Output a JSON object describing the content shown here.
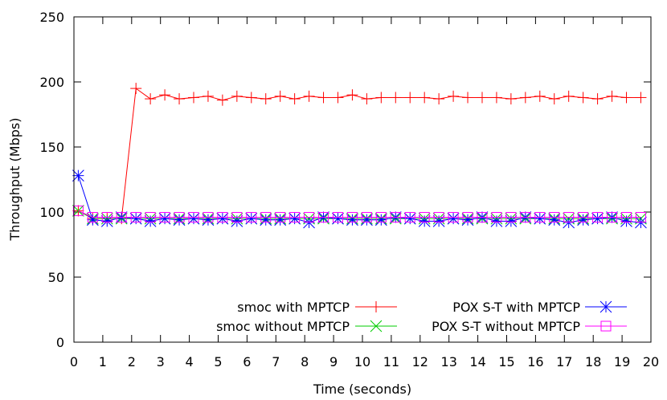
{
  "chart_data": {
    "type": "line",
    "title": "",
    "xlabel": "Time (seconds)",
    "ylabel": "Throughput (Mbps)",
    "xlim": [
      0,
      20
    ],
    "ylim": [
      0,
      250
    ],
    "xticks": [
      0,
      1,
      2,
      3,
      4,
      5,
      6,
      7,
      8,
      9,
      10,
      11,
      12,
      13,
      14,
      15,
      16,
      17,
      18,
      19,
      20
    ],
    "yticks": [
      0,
      50,
      100,
      150,
      200,
      250
    ],
    "grid": false,
    "legend_position": "bottom-right",
    "x": [
      0.15,
      0.65,
      1.15,
      1.65,
      2.15,
      2.65,
      3.15,
      3.65,
      4.15,
      4.65,
      5.15,
      5.65,
      6.15,
      6.65,
      7.15,
      7.65,
      8.15,
      8.65,
      9.15,
      9.65,
      10.15,
      10.65,
      11.15,
      11.65,
      12.15,
      12.65,
      13.15,
      13.65,
      14.15,
      14.65,
      15.15,
      15.65,
      16.15,
      16.65,
      17.15,
      17.65,
      18.15,
      18.65,
      19.15,
      19.65
    ],
    "series": [
      {
        "name": "smoc with MPTCP",
        "color": "#ff0000",
        "marker": "plus",
        "values": [
          101,
          95,
          95,
          95,
          195,
          187,
          190,
          187,
          188,
          189,
          186,
          189,
          188,
          187,
          189,
          187,
          189,
          188,
          188,
          190,
          187,
          188,
          188,
          188,
          188,
          187,
          189,
          188,
          188,
          188,
          187,
          188,
          189,
          187,
          189,
          188,
          187,
          189,
          188,
          188
        ]
      },
      {
        "name": "smoc without MPTCP",
        "color": "#00cc00",
        "marker": "cross",
        "values": [
          101,
          95,
          95,
          95,
          95,
          95,
          95,
          95,
          95,
          95,
          95,
          95,
          95,
          95,
          95,
          95,
          95,
          95,
          95,
          95,
          95,
          95,
          95,
          95,
          95,
          95,
          95,
          95,
          95,
          95,
          95,
          95,
          95,
          95,
          95,
          95,
          95,
          95,
          95,
          95
        ]
      },
      {
        "name": "POX S-T with MPTCP",
        "color": "#0000ff",
        "marker": "star",
        "values": [
          128,
          94,
          93,
          96,
          95,
          93,
          95,
          94,
          95,
          94,
          95,
          93,
          95,
          94,
          94,
          95,
          92,
          96,
          95,
          94,
          94,
          94,
          96,
          95,
          93,
          93,
          95,
          94,
          96,
          93,
          93,
          96,
          95,
          94,
          92,
          94,
          95,
          96,
          93,
          92
        ]
      },
      {
        "name": "POX S-T without MPTCP",
        "color": "#ff00ff",
        "marker": "square",
        "values": [
          101,
          96,
          96,
          96,
          96,
          96,
          96,
          96,
          96,
          96,
          96,
          96,
          96,
          96,
          96,
          96,
          96,
          96,
          96,
          96,
          96,
          96,
          96,
          96,
          96,
          96,
          96,
          96,
          96,
          96,
          96,
          96,
          96,
          96,
          96,
          96,
          96,
          96,
          96,
          96
        ]
      }
    ]
  }
}
